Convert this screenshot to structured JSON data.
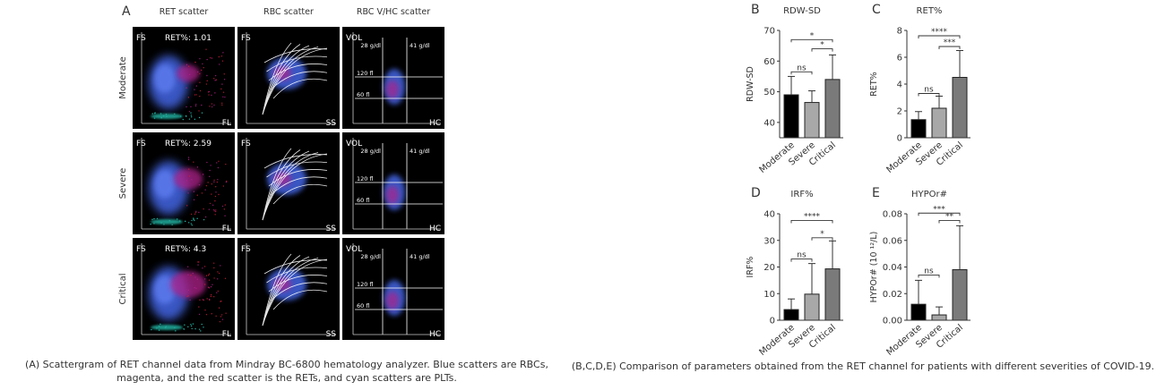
{
  "panel_a": {
    "letter": "A",
    "columns": [
      "RET scatter",
      "RBC scatter",
      "RBC V/HC scatter"
    ],
    "rows": [
      {
        "label": "Moderate",
        "ret_text": "RET%: 1.01"
      },
      {
        "label": "Severe",
        "ret_text": "RET%: 2.59"
      },
      {
        "label": "Critical",
        "ret_text": "RET%: 4.3"
      }
    ],
    "axis": {
      "fs": "FS",
      "fl": "FL",
      "ss": "SS",
      "vol": "VOL",
      "hc": "HC"
    },
    "vhc_labels": {
      "hc28": "28 g/dl",
      "hc41": "41 g/dl",
      "v120": "120 fl",
      "v60": "60 fl"
    },
    "colors": {
      "rbc": "#4060d8",
      "ret": "#b0208a",
      "plt": "#20b0a0",
      "red": "#d0203a",
      "background": "#000000"
    }
  },
  "caption_a": "(A) Scattergram of RET channel data from Mindray BC-6800 hematology analyzer. Blue scatters are RBCs, magenta, and the red scatter is the RETs, and cyan scatters are PLTs.",
  "caption_b": "(B,C,D,E) Comparison of parameters obtained from the RET channel for patients with different severities of COVID-19.",
  "chart_data": [
    {
      "letter": "B",
      "type": "bar",
      "title": "RDW-SD",
      "ylabel": "RDW-SD",
      "categories": [
        "Moderate",
        "Severe",
        "Critical"
      ],
      "values": [
        49,
        46.5,
        54
      ],
      "errors": [
        6,
        3.8,
        8
      ],
      "ylim": [
        35,
        70
      ],
      "yticks": [
        40,
        50,
        60,
        70
      ],
      "ytick_labels": [
        "40",
        "50",
        "60",
        "70"
      ],
      "bar_colors": [
        "#000000",
        "#a8a8a8",
        "#7a7a7a"
      ],
      "significance": [
        {
          "from": 0,
          "to": 1,
          "label": "ns",
          "y": 56.5
        },
        {
          "from": 1,
          "to": 2,
          "label": "*",
          "y": 64
        },
        {
          "from": 0,
          "to": 2,
          "label": "*",
          "y": 67
        }
      ]
    },
    {
      "letter": "C",
      "type": "bar",
      "title": "RET%",
      "ylabel": "RET%",
      "categories": [
        "Moderate",
        "Severe",
        "Critical"
      ],
      "values": [
        1.35,
        2.2,
        4.5
      ],
      "errors": [
        0.6,
        0.9,
        2
      ],
      "ylim": [
        0,
        8
      ],
      "yticks": [
        0,
        2,
        4,
        6,
        8
      ],
      "ytick_labels": [
        "0",
        "2",
        "4",
        "6",
        "8"
      ],
      "bar_colors": [
        "#000000",
        "#a8a8a8",
        "#7a7a7a"
      ],
      "significance": [
        {
          "from": 0,
          "to": 1,
          "label": "ns",
          "y": 3.3
        },
        {
          "from": 1,
          "to": 2,
          "label": "***",
          "y": 6.8
        },
        {
          "from": 0,
          "to": 2,
          "label": "****",
          "y": 7.6
        }
      ]
    },
    {
      "letter": "D",
      "type": "bar",
      "title": "IRF%",
      "ylabel": "IRF%",
      "categories": [
        "Moderate",
        "Severe",
        "Critical"
      ],
      "values": [
        4,
        9.8,
        19.3
      ],
      "errors": [
        4,
        11.5,
        10.5
      ],
      "ylim": [
        0,
        40
      ],
      "yticks": [
        0,
        10,
        20,
        30,
        40
      ],
      "ytick_labels": [
        "0",
        "10",
        "20",
        "30",
        "40"
      ],
      "bar_colors": [
        "#000000",
        "#a8a8a8",
        "#7a7a7a"
      ],
      "significance": [
        {
          "from": 0,
          "to": 1,
          "label": "ns",
          "y": 23
        },
        {
          "from": 1,
          "to": 2,
          "label": "*",
          "y": 31
        },
        {
          "from": 0,
          "to": 2,
          "label": "****",
          "y": 37.5
        }
      ]
    },
    {
      "letter": "E",
      "type": "bar",
      "title": "HYPOr#",
      "ylabel": "HYPOr# (10 ¹²/L)",
      "categories": [
        "Moderate",
        "Severe",
        "Critical"
      ],
      "values": [
        0.012,
        0.004,
        0.038
      ],
      "errors": [
        0.018,
        0.006,
        0.033
      ],
      "ylim": [
        0,
        0.08
      ],
      "yticks": [
        0,
        0.02,
        0.04,
        0.06,
        0.08
      ],
      "ytick_labels": [
        "0.00",
        "0.02",
        "0.04",
        "0.06",
        "0.08"
      ],
      "bar_colors": [
        "#000000",
        "#a8a8a8",
        "#7a7a7a"
      ],
      "significance": [
        {
          "from": 0,
          "to": 1,
          "label": "ns",
          "y": 0.034
        },
        {
          "from": 1,
          "to": 2,
          "label": "**",
          "y": 0.075
        },
        {
          "from": 0,
          "to": 2,
          "label": "***",
          "y": 0.0805
        }
      ]
    }
  ]
}
